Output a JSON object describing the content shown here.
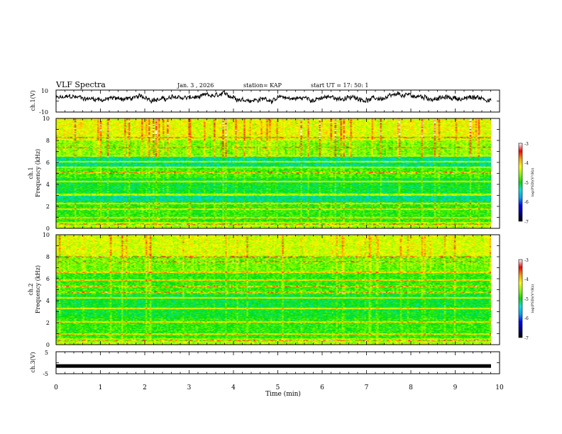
{
  "header": {
    "title": "VLF Spectra",
    "date": "Jan. 3 , 2026",
    "station": "station= KAP",
    "start": "start UT = 17: 50: 1"
  },
  "chart_data": [
    {
      "type": "line",
      "name": "ch1-waveform",
      "ylabel": "ch.1(V)",
      "ylim": [
        -10,
        10
      ],
      "yticks": [
        "10",
        "-10"
      ],
      "xlim": [
        0,
        10
      ],
      "series": [
        {
          "name": "ch.1",
          "color": "#000000",
          "mean": 2.5,
          "amplitude": 4
        }
      ]
    },
    {
      "type": "heatmap",
      "name": "ch1-spectrogram",
      "ylabel_line1": "ch.1",
      "ylabel_line2": "Frequency (kHz)",
      "ylim": [
        0,
        10
      ],
      "yticks": [
        "0",
        "2",
        "4",
        "6",
        "8",
        "10"
      ],
      "xlim": [
        0,
        9.8
      ],
      "colorbar": {
        "label": "log(PSD)(V²/Hz)",
        "range": [
          -7,
          -3
        ],
        "ticks": [
          "-3",
          "-4",
          "-5",
          "-6",
          "-7"
        ]
      }
    },
    {
      "type": "heatmap",
      "name": "ch2-spectrogram",
      "ylabel_line1": "ch.2",
      "ylabel_line2": "Frequency (kHz)",
      "ylim": [
        0,
        10
      ],
      "yticks": [
        "0",
        "2",
        "4",
        "6",
        "8",
        "10"
      ],
      "xlim": [
        0,
        9.8
      ],
      "colorbar": {
        "label": "log(PSD)(V²/Hz)",
        "range": [
          -7,
          -3
        ],
        "ticks": [
          "-3",
          "-4",
          "-5",
          "-6",
          "-7"
        ]
      }
    },
    {
      "type": "line",
      "name": "ch3-waveform",
      "ylabel": "ch.3(V)",
      "ylim": [
        -5,
        5
      ],
      "yticks": [
        "5",
        "-5"
      ],
      "xlim": [
        0,
        10
      ],
      "series": [
        {
          "name": "ch.3",
          "color": "#000000",
          "mean": -1.5,
          "amplitude": 0.4
        }
      ]
    }
  ],
  "xaxis": {
    "label": "Time (min)",
    "ticks": [
      "0",
      "1",
      "2",
      "3",
      "4",
      "5",
      "6",
      "7",
      "8",
      "9",
      "10"
    ],
    "range": [
      0,
      10
    ]
  },
  "colors": {
    "palette": [
      "#000080",
      "#0000ff",
      "#00a0ff",
      "#00e0e0",
      "#00dd00",
      "#80ff00",
      "#ffff00",
      "#ffa000",
      "#ff0000",
      "#ffffff"
    ]
  }
}
